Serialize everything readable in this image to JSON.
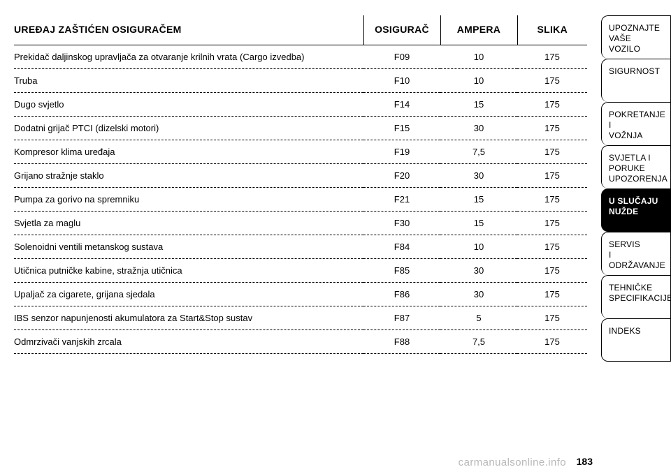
{
  "table": {
    "headers": {
      "device": "UREĐAJ ZAŠTIĆEN OSIGURAČEM",
      "fuse": "OSIGURAČ",
      "amp": "AMPERA",
      "fig": "SLIKA"
    },
    "rows": [
      {
        "device": "Prekidač daljinskog upravljača za otvaranje krilnih vrata (Cargo izvedba)",
        "fuse": "F09",
        "amp": "10",
        "fig": "175"
      },
      {
        "device": "Truba",
        "fuse": "F10",
        "amp": "10",
        "fig": "175"
      },
      {
        "device": "Dugo svjetlo",
        "fuse": "F14",
        "amp": "15",
        "fig": "175"
      },
      {
        "device": "Dodatni grijač PTCI (dizelski motori)",
        "fuse": "F15",
        "amp": "30",
        "fig": "175"
      },
      {
        "device": "Kompresor klima uređaja",
        "fuse": "F19",
        "amp": "7,5",
        "fig": "175"
      },
      {
        "device": "Grijano stražnje staklo",
        "fuse": "F20",
        "amp": "30",
        "fig": "175"
      },
      {
        "device": "Pumpa za gorivo na spremniku",
        "fuse": "F21",
        "amp": "15",
        "fig": "175"
      },
      {
        "device": "Svjetla za maglu",
        "fuse": "F30",
        "amp": "15",
        "fig": "175"
      },
      {
        "device": "Solenoidni ventili metanskog sustava",
        "fuse": "F84",
        "amp": "10",
        "fig": "175"
      },
      {
        "device": "Utičnica putničke kabine, stražnja utičnica",
        "fuse": "F85",
        "amp": "30",
        "fig": "175"
      },
      {
        "device": "Upaljač za cigarete, grijana sjedala",
        "fuse": "F86",
        "amp": "30",
        "fig": "175"
      },
      {
        "device": "IBS senzor napunjenosti akumulatora za Start&Stop sustav",
        "fuse": "F87",
        "amp": "5",
        "fig": "175"
      },
      {
        "device": "Odmrzivači vanjskih zrcala",
        "fuse": "F88",
        "amp": "7,5",
        "fig": "175"
      }
    ]
  },
  "sidebar": {
    "tabs": [
      {
        "label": "UPOZNAJTE\nVAŠE\nVOZILO",
        "active": false
      },
      {
        "label": "SIGURNOST",
        "active": false
      },
      {
        "label": "POKRETANJE\nI\nVOŽNJA",
        "active": false
      },
      {
        "label": "SVJETLA I\nPORUKE\nUPOZORENJA",
        "active": false
      },
      {
        "label": "U SLUČAJU\nNUŽDE",
        "active": true
      },
      {
        "label": "SERVIS\nI\nODRŽAVANJE",
        "active": false
      },
      {
        "label": "TEHNIČKE\nSPECIFIKACIJE",
        "active": false
      },
      {
        "label": "INDEKS",
        "active": false
      }
    ]
  },
  "page_number": "183",
  "watermark": "carmanualsonline.info",
  "colors": {
    "background": "#ffffff",
    "text": "#000000",
    "watermark": "#b8b8b8"
  }
}
